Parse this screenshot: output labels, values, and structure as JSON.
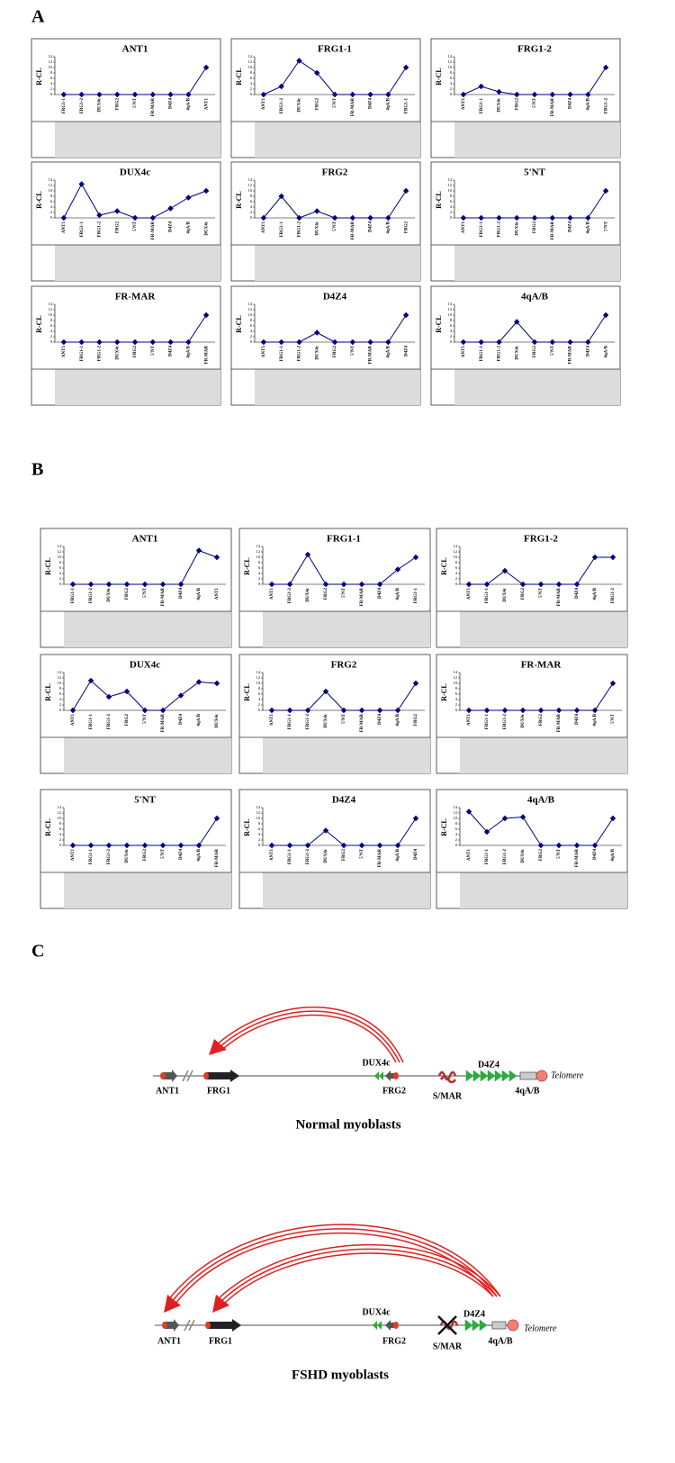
{
  "panel_labels": [
    "A",
    "B",
    "C"
  ],
  "chart_data": [
    {
      "type": "line",
      "title": "ANT1",
      "ylabel": "R-CL",
      "categories": [
        "FRG1-1",
        "FRG1-2",
        "DUX4c",
        "FRG2",
        "5'NT",
        "FR-MAR",
        "D4Z4",
        "4qA/B",
        "ANT1"
      ],
      "values": [
        0,
        0,
        0,
        0,
        0,
        0,
        0,
        0,
        10
      ],
      "color": "#000080",
      "ylim": [
        0,
        14
      ],
      "yticks": [
        0,
        2,
        4,
        6,
        8,
        10,
        12,
        14
      ]
    },
    {
      "type": "line",
      "title": "FRG1-1",
      "ylabel": "R-CL",
      "categories": [
        "ANT1",
        "FRG1-2",
        "DUX4c",
        "FRG2",
        "5'NT",
        "FR-MAR",
        "D4Z4",
        "4qA/B",
        "FRG1-1"
      ],
      "values": [
        0,
        3,
        12.5,
        8,
        0,
        0,
        0,
        0,
        10
      ],
      "color": "#000080",
      "ylim": [
        0,
        14
      ],
      "yticks": [
        0,
        2,
        4,
        6,
        8,
        10,
        12,
        14
      ]
    },
    {
      "type": "line",
      "title": "FRG1-2",
      "ylabel": "R-CL",
      "categories": [
        "ANT1",
        "FRG1-1",
        "DUX4c",
        "FRG2",
        "5'NT",
        "FR-MAR",
        "D4Z4",
        "4qA/B",
        "FRG1-2"
      ],
      "values": [
        0,
        3,
        1,
        0,
        0,
        0,
        0,
        0,
        10
      ],
      "color": "#000080",
      "ylim": [
        0,
        14
      ],
      "yticks": [
        0,
        2,
        4,
        6,
        8,
        10,
        12,
        14
      ]
    },
    {
      "type": "line",
      "title": "DUX4c",
      "ylabel": "R-CL",
      "categories": [
        "ANT1",
        "FRG1-1",
        "FRG1-2",
        "FRG2",
        "5'NT",
        "FR-MAR",
        "D4Z4",
        "4qA/B",
        "DUX4c"
      ],
      "values": [
        0,
        12.5,
        1,
        2.5,
        0,
        0,
        3.5,
        7.5,
        10
      ],
      "color": "#000080",
      "ylim": [
        0,
        14
      ],
      "yticks": [
        0,
        2,
        4,
        6,
        8,
        10,
        12,
        14
      ]
    },
    {
      "type": "line",
      "title": "FRG2",
      "ylabel": "R-CL",
      "categories": [
        "ANT1",
        "FRG1-1",
        "FRG1-2",
        "DUX4c",
        "5'NT",
        "FR-MAR",
        "D4Z4",
        "4qA/B",
        "FRG2"
      ],
      "values": [
        0,
        8,
        0,
        2.5,
        0,
        0,
        0,
        0,
        10
      ],
      "color": "#000080",
      "ylim": [
        0,
        14
      ],
      "yticks": [
        0,
        2,
        4,
        6,
        8,
        10,
        12,
        14
      ]
    },
    {
      "type": "line",
      "title": "5'NT",
      "ylabel": "R-CL",
      "categories": [
        "ANT1",
        "FRG1-1",
        "FRG1-2",
        "DUX4c",
        "FRG2",
        "FR-MAR",
        "D4Z4",
        "4qA/B",
        "5'NT"
      ],
      "values": [
        0,
        0,
        0,
        0,
        0,
        0,
        0,
        0,
        10
      ],
      "color": "#000080",
      "ylim": [
        0,
        14
      ],
      "yticks": [
        0,
        2,
        4,
        6,
        8,
        10,
        12,
        14
      ]
    },
    {
      "type": "line",
      "title": "FR-MAR",
      "ylabel": "R-CL",
      "categories": [
        "ANT1",
        "FRG1-1",
        "FRG1-2",
        "DUX4c",
        "FRG2",
        "5'NT",
        "D4Z4",
        "4qA/B",
        "FR-MAR"
      ],
      "values": [
        0,
        0,
        0,
        0,
        0,
        0,
        0,
        0,
        10
      ],
      "color": "#000080",
      "ylim": [
        0,
        14
      ],
      "yticks": [
        0,
        2,
        4,
        6,
        8,
        10,
        12,
        14
      ]
    },
    {
      "type": "line",
      "title": "D4Z4",
      "ylabel": "R-CL",
      "categories": [
        "ANT1",
        "FRG1-1",
        "FRG1-2",
        "DUX4c",
        "FRG2",
        "5'NT",
        "FR-MAR",
        "4qA/B",
        "D4Z4"
      ],
      "values": [
        0,
        0,
        0,
        3.5,
        0,
        0,
        0,
        0,
        10
      ],
      "color": "#000080",
      "ylim": [
        0,
        14
      ],
      "yticks": [
        0,
        2,
        4,
        6,
        8,
        10,
        12,
        14
      ]
    },
    {
      "type": "line",
      "title": "4qA/B",
      "ylabel": "R-CL",
      "categories": [
        "ANT1",
        "FRG1-1",
        "FRG1-2",
        "DUX4c",
        "FRG2",
        "5'NT",
        "FR-MAR",
        "D4Z4",
        "4qA/B"
      ],
      "values": [
        0,
        0,
        0,
        7.5,
        0,
        0,
        0,
        0,
        10
      ],
      "color": "#000080",
      "ylim": [
        0,
        14
      ],
      "yticks": [
        0,
        2,
        4,
        6,
        8,
        10,
        12,
        14
      ]
    },
    {
      "type": "line",
      "title": "ANT1",
      "ylabel": "R-CL",
      "categories": [
        "FRG1-1",
        "FRG1-2",
        "DUX4c",
        "FRG2",
        "5'NT",
        "FR-MAR",
        "D4Z4",
        "4qA/B",
        "ANT1"
      ],
      "values": [
        0,
        0,
        0,
        0,
        0,
        0,
        0,
        12.5,
        10
      ],
      "color": "#000080",
      "ylim": [
        0,
        14
      ],
      "yticks": [
        0,
        2,
        4,
        6,
        8,
        10,
        12,
        14
      ]
    },
    {
      "type": "line",
      "title": "FRG1-1",
      "ylabel": "R-CL",
      "categories": [
        "ANT1",
        "FRG1-2",
        "DUX4c",
        "FRG2",
        "5'NT",
        "FR-MAR",
        "D4Z4",
        "4qA/B",
        "FRG1-1"
      ],
      "values": [
        0,
        0,
        11,
        0,
        0,
        0,
        0,
        5.5,
        10
      ],
      "color": "#000080",
      "ylim": [
        0,
        14
      ],
      "yticks": [
        0,
        2,
        4,
        6,
        8,
        10,
        12,
        14
      ]
    },
    {
      "type": "line",
      "title": "FRG1-2",
      "ylabel": "R-CL",
      "categories": [
        "ANT1",
        "FRG1-1",
        "DUX4c",
        "FRG2",
        "5'NT",
        "FR-MAR",
        "D4Z4",
        "4qA/B",
        "FRG1-2"
      ],
      "values": [
        0,
        0,
        5,
        0,
        0,
        0,
        0,
        10,
        10
      ],
      "color": "#000080",
      "ylim": [
        0,
        14
      ],
      "yticks": [
        0,
        2,
        4,
        6,
        8,
        10,
        12,
        14
      ]
    },
    {
      "type": "line",
      "title": "DUX4c",
      "ylabel": "R-CL",
      "categories": [
        "ANT1",
        "FRG1-1",
        "FRG1-2",
        "FRG2",
        "5'NT",
        "FR-MAR",
        "D4Z4",
        "4qA/B",
        "DUX4c"
      ],
      "values": [
        0,
        11,
        5,
        7,
        0,
        0,
        5.5,
        10.5,
        10
      ],
      "color": "#000080",
      "ylim": [
        0,
        14
      ],
      "yticks": [
        0,
        2,
        4,
        6,
        8,
        10,
        12,
        14
      ]
    },
    {
      "type": "line",
      "title": "FRG2",
      "ylabel": "R-CL",
      "categories": [
        "ANT1",
        "FRG1-1",
        "FRG1-2",
        "DUX4c",
        "5'NT",
        "FR-MAR",
        "D4Z4",
        "4qA/B",
        "FRG2"
      ],
      "values": [
        0,
        0,
        0,
        7,
        0,
        0,
        0,
        0,
        10
      ],
      "color": "#000080",
      "ylim": [
        0,
        14
      ],
      "yticks": [
        0,
        2,
        4,
        6,
        8,
        10,
        12,
        14
      ]
    },
    {
      "type": "line",
      "title": "FR-MAR",
      "ylabel": "R-CL",
      "categories": [
        "ANT1",
        "FRG1-1",
        "FRG1-2",
        "DUX4c",
        "FRG2",
        "FR-MAR",
        "D4Z4",
        "4qA/B",
        "5'NT"
      ],
      "values": [
        0,
        0,
        0,
        0,
        0,
        0,
        0,
        0,
        10
      ],
      "color": "#000080",
      "ylim": [
        0,
        14
      ],
      "yticks": [
        0,
        2,
        4,
        6,
        8,
        10,
        12,
        14
      ]
    },
    {
      "type": "line",
      "title": "5'NT",
      "ylabel": "R-CL",
      "categories": [
        "ANT1",
        "FRG1-1",
        "FRG1-2",
        "DUX4c",
        "FRG2",
        "5'NT",
        "D4Z4",
        "4qA/B",
        "FR-MAR"
      ],
      "values": [
        0,
        0,
        0,
        0,
        0,
        0,
        0,
        0,
        10
      ],
      "color": "#000080",
      "ylim": [
        0,
        14
      ],
      "yticks": [
        0,
        2,
        4,
        6,
        8,
        10,
        12,
        14
      ]
    },
    {
      "type": "line",
      "title": "D4Z4",
      "ylabel": "R-CL",
      "categories": [
        "ANT1",
        "FRG1-1",
        "FRG1-2",
        "DUX4c",
        "FRG2",
        "5'NT",
        "FR-MAR",
        "4qA/B",
        "D4Z4"
      ],
      "values": [
        0,
        0,
        0,
        5.5,
        0,
        0,
        0,
        0,
        10
      ],
      "color": "#000080",
      "ylim": [
        0,
        14
      ],
      "yticks": [
        0,
        2,
        4,
        6,
        8,
        10,
        12,
        14
      ]
    },
    {
      "type": "line",
      "title": "4qA/B",
      "ylabel": "R-CL",
      "categories": [
        "ANT1",
        "FRG1-1",
        "FRG1-2",
        "DUX4c",
        "FRG2",
        "5'NT",
        "FR-MAR",
        "D4Z4",
        "4qA/B"
      ],
      "values": [
        12.5,
        5,
        10,
        10.5,
        0,
        0,
        0,
        0,
        10
      ],
      "color": "#000080",
      "ylim": [
        0,
        14
      ],
      "yticks": [
        0,
        2,
        4,
        6,
        8,
        10,
        12,
        14
      ]
    }
  ],
  "diagram": {
    "normal": {
      "ant1": "ANT1",
      "frg1": "FRG1",
      "dux4c": "DUX4c",
      "frg2": "FRG2",
      "smar": "S/MAR",
      "d4z4": "D4Z4",
      "qab": "4qA/B",
      "telomere": "Telomere",
      "caption": "Normal myoblasts"
    },
    "fshd": {
      "ant1": "ANT1",
      "frg1": "FRG1",
      "dux4c": "DUX4c",
      "frg2": "FRG2",
      "smar": "S/MAR",
      "d4z4": "D4Z4",
      "qab": "4qA/B",
      "telomere": "Telomere",
      "caption": "FSHD myoblasts"
    }
  }
}
